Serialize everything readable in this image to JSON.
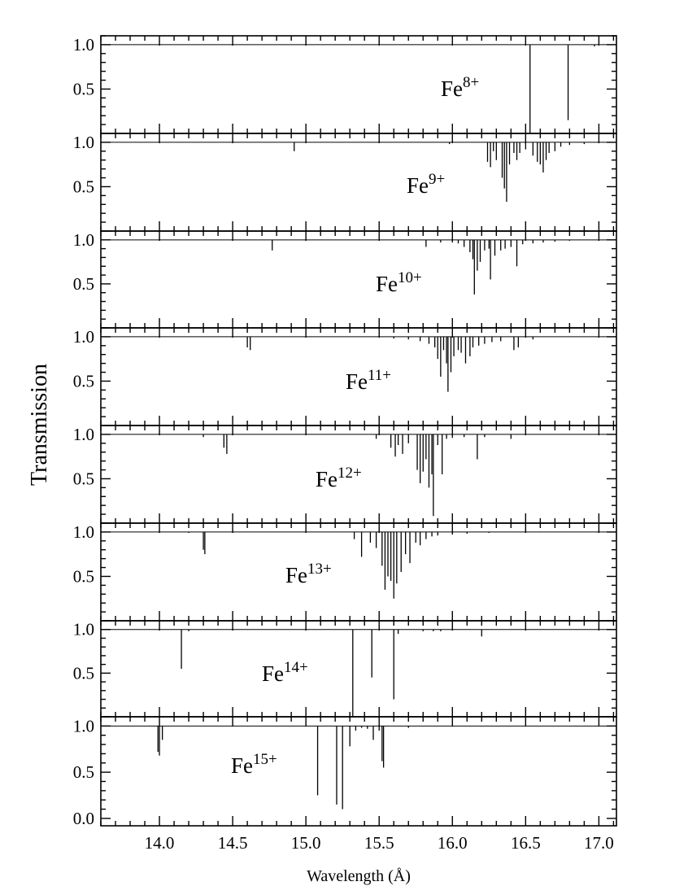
{
  "chart_data": {
    "type": "line",
    "layout": "stacked-panels",
    "ylabel": "Transmission",
    "xlabel": "Wavelength (Å)",
    "xlim": [
      13.6,
      17.12
    ],
    "x_ticks": [
      "14.0",
      "14.5",
      "15.0",
      "15.5",
      "16.0",
      "16.5",
      "17.0"
    ],
    "x_tick_values": [
      14.0,
      14.5,
      15.0,
      15.5,
      16.0,
      16.5,
      17.0
    ],
    "colors": {
      "line": "#000000",
      "axes": "#000000",
      "background": "#ffffff"
    },
    "panels": [
      {
        "ion_base": "Fe",
        "ion_charge": "8+",
        "ylim": [
          0.0,
          1.1
        ],
        "y_ticks": [
          "1.0",
          "0.5"
        ],
        "y_tick_values": [
          1.0,
          0.5
        ],
        "baseline": 1.0,
        "lines": [
          [
            16.53,
            0.0
          ],
          [
            16.79,
            0.15
          ],
          [
            16.97,
            0.98
          ]
        ]
      },
      {
        "ion_base": "Fe",
        "ion_charge": "9+",
        "ylim": [
          0.0,
          1.1
        ],
        "y_ticks": [
          "1.0",
          "0.5"
        ],
        "y_tick_values": [
          1.0,
          0.5
        ],
        "baseline": 1.0,
        "lines": [
          [
            14.92,
            0.9
          ],
          [
            15.98,
            0.98
          ],
          [
            16.24,
            0.78
          ],
          [
            16.26,
            0.72
          ],
          [
            16.28,
            0.9
          ],
          [
            16.3,
            0.8
          ],
          [
            16.34,
            0.6
          ],
          [
            16.355,
            0.48
          ],
          [
            16.37,
            0.33
          ],
          [
            16.39,
            0.75
          ],
          [
            16.42,
            0.88
          ],
          [
            16.44,
            0.8
          ],
          [
            16.46,
            0.88
          ],
          [
            16.5,
            0.92
          ],
          [
            16.55,
            0.85
          ],
          [
            16.58,
            0.78
          ],
          [
            16.6,
            0.75
          ],
          [
            16.62,
            0.66
          ],
          [
            16.64,
            0.8
          ],
          [
            16.66,
            0.88
          ],
          [
            16.7,
            0.9
          ],
          [
            16.74,
            0.95
          ],
          [
            16.8,
            0.97
          ],
          [
            16.9,
            0.98
          ],
          [
            17.0,
            0.99
          ]
        ]
      },
      {
        "ion_base": "Fe",
        "ion_charge": "10+",
        "ylim": [
          0.0,
          1.1
        ],
        "y_ticks": [
          "1.0",
          "0.5"
        ],
        "y_tick_values": [
          1.0,
          0.5
        ],
        "baseline": 1.0,
        "lines": [
          [
            14.77,
            0.88
          ],
          [
            15.82,
            0.92
          ],
          [
            15.92,
            0.97
          ],
          [
            16.0,
            0.97
          ],
          [
            16.04,
            0.96
          ],
          [
            16.08,
            0.92
          ],
          [
            16.12,
            0.86
          ],
          [
            16.14,
            0.78
          ],
          [
            16.15,
            0.38
          ],
          [
            16.17,
            0.65
          ],
          [
            16.19,
            0.75
          ],
          [
            16.22,
            0.88
          ],
          [
            16.25,
            0.9
          ],
          [
            16.26,
            0.55
          ],
          [
            16.29,
            0.82
          ],
          [
            16.33,
            0.88
          ],
          [
            16.36,
            0.9
          ],
          [
            16.4,
            0.92
          ],
          [
            16.44,
            0.7
          ],
          [
            16.48,
            0.95
          ],
          [
            16.55,
            0.96
          ],
          [
            16.62,
            0.97
          ],
          [
            16.7,
            0.98
          ],
          [
            16.8,
            0.99
          ]
        ]
      },
      {
        "ion_base": "Fe",
        "ion_charge": "11+",
        "ylim": [
          0.0,
          1.1
        ],
        "y_ticks": [
          "1.0",
          "0.5"
        ],
        "y_tick_values": [
          1.0,
          0.5
        ],
        "baseline": 1.0,
        "lines": [
          [
            14.6,
            0.88
          ],
          [
            14.62,
            0.85
          ],
          [
            15.6,
            0.98
          ],
          [
            15.7,
            0.97
          ],
          [
            15.78,
            0.95
          ],
          [
            15.84,
            0.92
          ],
          [
            15.88,
            0.88
          ],
          [
            15.9,
            0.75
          ],
          [
            15.92,
            0.55
          ],
          [
            15.94,
            0.85
          ],
          [
            15.96,
            0.7
          ],
          [
            15.97,
            0.38
          ],
          [
            15.99,
            0.6
          ],
          [
            16.01,
            0.78
          ],
          [
            16.04,
            0.85
          ],
          [
            16.06,
            0.82
          ],
          [
            16.09,
            0.7
          ],
          [
            16.12,
            0.78
          ],
          [
            16.14,
            0.88
          ],
          [
            16.18,
            0.9
          ],
          [
            16.22,
            0.92
          ],
          [
            16.27,
            0.94
          ],
          [
            16.33,
            0.95
          ],
          [
            16.42,
            0.85
          ],
          [
            16.45,
            0.88
          ],
          [
            16.55,
            0.97
          ]
        ]
      },
      {
        "ion_base": "Fe",
        "ion_charge": "12+",
        "ylim": [
          0.0,
          1.1
        ],
        "y_ticks": [
          "1.0",
          "0.5"
        ],
        "y_tick_values": [
          1.0,
          0.5
        ],
        "baseline": 1.0,
        "lines": [
          [
            14.3,
            0.97
          ],
          [
            14.44,
            0.85
          ],
          [
            14.46,
            0.78
          ],
          [
            15.48,
            0.95
          ],
          [
            15.58,
            0.85
          ],
          [
            15.61,
            0.75
          ],
          [
            15.63,
            0.88
          ],
          [
            15.66,
            0.78
          ],
          [
            15.7,
            0.9
          ],
          [
            15.76,
            0.6
          ],
          [
            15.78,
            0.45
          ],
          [
            15.8,
            0.58
          ],
          [
            15.82,
            0.72
          ],
          [
            15.84,
            0.4
          ],
          [
            15.86,
            0.55
          ],
          [
            15.87,
            0.08
          ],
          [
            15.9,
            0.88
          ],
          [
            15.93,
            0.55
          ],
          [
            15.96,
            0.95
          ],
          [
            16.0,
            0.96
          ],
          [
            16.08,
            0.97
          ],
          [
            16.17,
            0.72
          ],
          [
            16.22,
            0.97
          ],
          [
            16.4,
            0.95
          ]
        ]
      },
      {
        "ion_base": "Fe",
        "ion_charge": "13+",
        "ylim": [
          0.0,
          1.1
        ],
        "y_ticks": [
          "1.0",
          "0.5"
        ],
        "y_tick_values": [
          1.0,
          0.5
        ],
        "baseline": 1.0,
        "lines": [
          [
            14.2,
            0.99
          ],
          [
            14.3,
            0.8
          ],
          [
            14.31,
            0.75
          ],
          [
            15.33,
            0.92
          ],
          [
            15.38,
            0.72
          ],
          [
            15.44,
            0.88
          ],
          [
            15.48,
            0.82
          ],
          [
            15.52,
            0.62
          ],
          [
            15.54,
            0.35
          ],
          [
            15.56,
            0.5
          ],
          [
            15.58,
            0.45
          ],
          [
            15.6,
            0.25
          ],
          [
            15.62,
            0.42
          ],
          [
            15.65,
            0.55
          ],
          [
            15.68,
            0.75
          ],
          [
            15.71,
            0.65
          ],
          [
            15.75,
            0.88
          ],
          [
            15.78,
            0.85
          ],
          [
            15.82,
            0.92
          ],
          [
            15.86,
            0.95
          ],
          [
            15.9,
            0.96
          ],
          [
            16.0,
            0.97
          ],
          [
            16.1,
            0.98
          ],
          [
            16.25,
            0.99
          ]
        ]
      },
      {
        "ion_base": "Fe",
        "ion_charge": "14+",
        "ylim": [
          0.0,
          1.1
        ],
        "y_ticks": [
          "1.0",
          "0.5"
        ],
        "y_tick_values": [
          1.0,
          0.5
        ],
        "baseline": 1.0,
        "lines": [
          [
            14.15,
            0.55
          ],
          [
            14.2,
            0.98
          ],
          [
            15.32,
            0.0
          ],
          [
            15.45,
            0.45
          ],
          [
            15.6,
            0.2
          ],
          [
            15.63,
            0.95
          ],
          [
            15.8,
            0.98
          ],
          [
            15.87,
            0.98
          ],
          [
            15.92,
            0.98
          ],
          [
            16.2,
            0.92
          ]
        ]
      },
      {
        "ion_base": "Fe",
        "ion_charge": "15+",
        "ylim": [
          -0.08,
          1.1
        ],
        "y_ticks": [
          "1.0",
          "0.5",
          "0.0"
        ],
        "y_tick_values": [
          1.0,
          0.5,
          0.0
        ],
        "baseline": 1.0,
        "lines": [
          [
            13.99,
            0.72
          ],
          [
            14.0,
            0.68
          ],
          [
            14.02,
            0.85
          ],
          [
            15.08,
            0.25
          ],
          [
            15.21,
            0.15
          ],
          [
            15.25,
            0.1
          ],
          [
            15.3,
            0.78
          ],
          [
            15.34,
            0.95
          ],
          [
            15.38,
            0.98
          ],
          [
            15.42,
            0.97
          ],
          [
            15.46,
            0.85
          ],
          [
            15.5,
            0.95
          ],
          [
            15.52,
            0.62
          ],
          [
            15.53,
            0.55
          ],
          [
            15.7,
            0.98
          ]
        ]
      }
    ]
  }
}
